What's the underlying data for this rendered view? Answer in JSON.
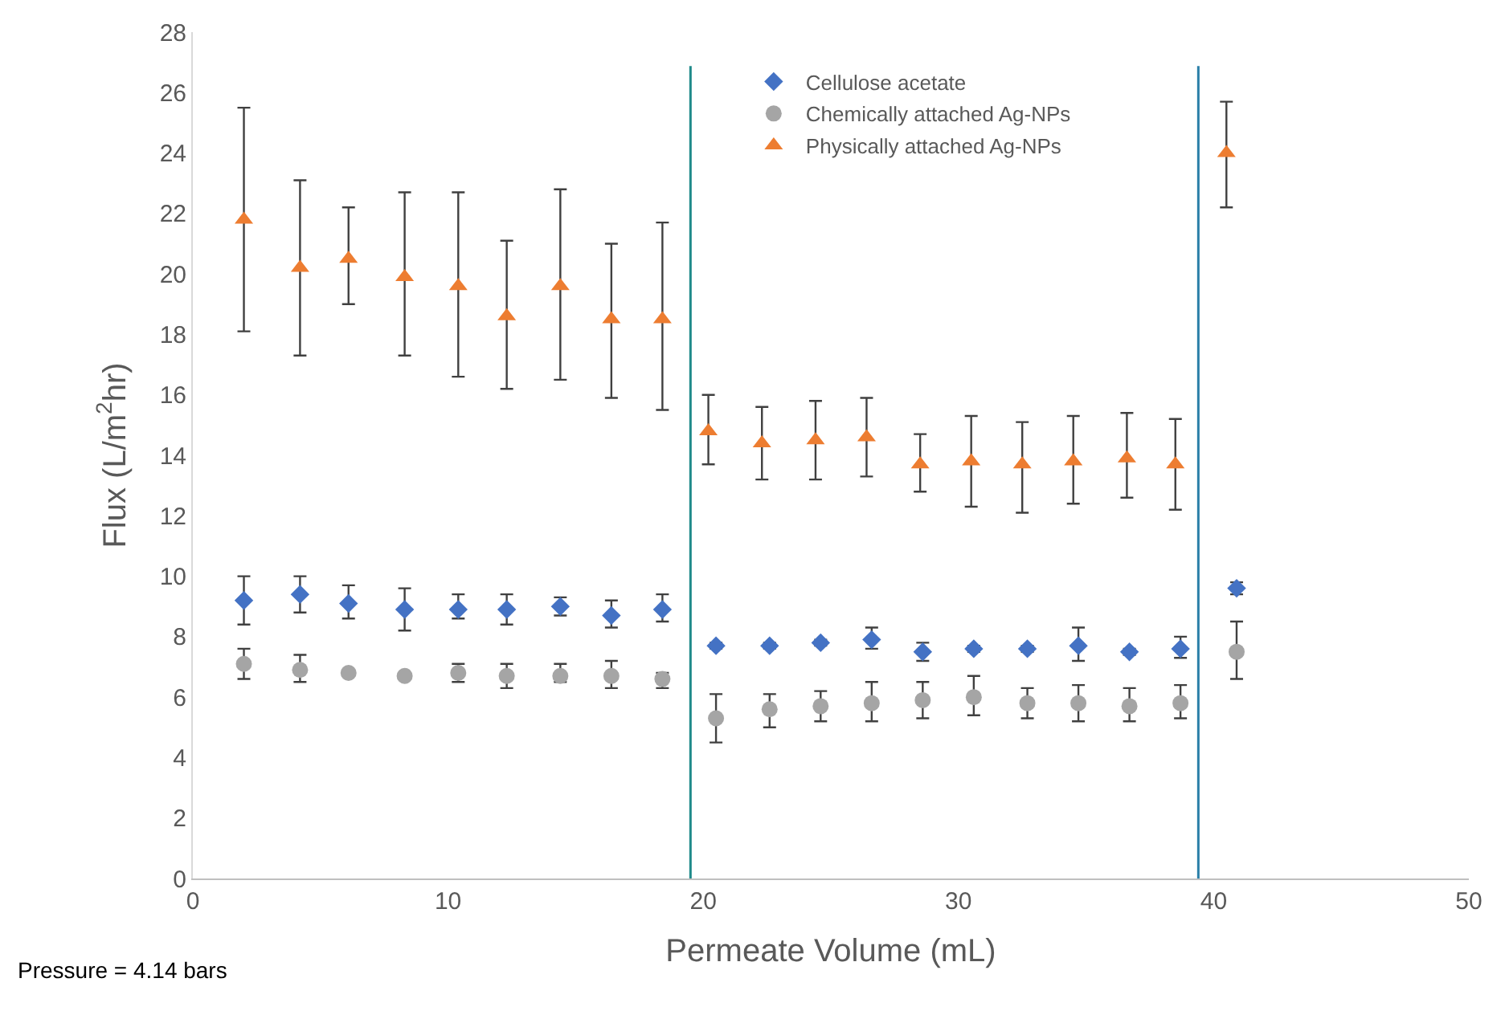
{
  "chart_data": {
    "type": "scatter",
    "xlabel": "Permeate Volume (mL)",
    "ylabel": "Flux (L/m$^{2}$hr)",
    "xlim": [
      0,
      50
    ],
    "xticks": [
      0,
      10,
      20,
      30,
      40,
      50
    ],
    "ylim": [
      0,
      28
    ],
    "yticks": [
      0,
      2,
      4,
      6,
      8,
      10,
      12,
      14,
      16,
      18,
      20,
      22,
      24,
      26,
      28
    ],
    "legend": "top",
    "annotations": [
      "Pressure = 4.14 bars"
    ],
    "ref_lines": [
      {
        "axis": "x",
        "value": 19.5,
        "color": "#1f8a8a"
      },
      {
        "axis": "x",
        "value": 39.4,
        "color": "#2a7fa8"
      }
    ],
    "series": [
      {
        "name": "Cellulose acetate",
        "color": "#4472c4",
        "marker": "diamond",
        "x": [
          2.0,
          4.2,
          6.1,
          8.3,
          10.4,
          12.3,
          14.4,
          16.4,
          18.4,
          20.5,
          22.6,
          24.6,
          26.6,
          28.6,
          30.6,
          32.7,
          34.7,
          36.7,
          38.7,
          40.9
        ],
        "values": [
          9.2,
          9.4,
          9.1,
          8.9,
          8.9,
          8.9,
          9.0,
          8.7,
          8.9,
          7.7,
          7.7,
          7.8,
          7.9,
          7.5,
          7.6,
          7.6,
          7.7,
          7.5,
          7.6,
          9.6
        ],
        "errors": [
          [
            8.4,
            10.0
          ],
          [
            8.8,
            10.0
          ],
          [
            8.6,
            9.7
          ],
          [
            8.2,
            9.6
          ],
          [
            8.6,
            9.4
          ],
          [
            8.4,
            9.4
          ],
          [
            8.7,
            9.3
          ],
          [
            8.3,
            9.2
          ],
          [
            8.5,
            9.4
          ],
          0.1,
          0.1,
          0.1,
          [
            7.6,
            8.3
          ],
          [
            7.2,
            7.8
          ],
          0.1,
          0.1,
          [
            7.2,
            8.3
          ],
          0.1,
          [
            7.3,
            8.0
          ],
          0.2
        ]
      },
      {
        "name": "Chemically attached Ag-NPs",
        "color": "#a5a5a5",
        "marker": "circle",
        "x": [
          2.0,
          4.2,
          6.1,
          8.3,
          10.4,
          12.3,
          14.4,
          16.4,
          18.4,
          20.5,
          22.6,
          24.6,
          26.6,
          28.6,
          30.6,
          32.7,
          34.7,
          36.7,
          38.7,
          40.9
        ],
        "values": [
          7.1,
          6.9,
          6.8,
          6.7,
          6.8,
          6.7,
          6.7,
          6.7,
          6.6,
          5.3,
          5.6,
          5.7,
          5.8,
          5.9,
          6.0,
          5.8,
          5.8,
          5.7,
          5.8,
          7.5
        ],
        "errors": [
          [
            6.6,
            7.6
          ],
          [
            6.5,
            7.4
          ],
          0.1,
          0.1,
          [
            6.5,
            7.1
          ],
          [
            6.3,
            7.1
          ],
          [
            6.5,
            7.1
          ],
          [
            6.3,
            7.2
          ],
          [
            6.3,
            6.8
          ],
          [
            4.5,
            6.1
          ],
          [
            5.0,
            6.1
          ],
          [
            5.2,
            6.2
          ],
          [
            5.2,
            6.5
          ],
          [
            5.3,
            6.5
          ],
          [
            5.4,
            6.7
          ],
          [
            5.3,
            6.3
          ],
          [
            5.2,
            6.4
          ],
          [
            5.2,
            6.3
          ],
          [
            5.3,
            6.4
          ],
          [
            6.6,
            8.5
          ]
        ]
      },
      {
        "name": "Physically attached Ag-NPs",
        "color": "#ed7d31",
        "marker": "triangle",
        "x": [
          2.0,
          4.2,
          6.1,
          8.3,
          10.4,
          12.3,
          14.4,
          16.4,
          18.4,
          20.2,
          22.3,
          24.4,
          26.4,
          28.5,
          30.5,
          32.5,
          34.5,
          36.6,
          38.5,
          40.5
        ],
        "values": [
          21.8,
          20.2,
          20.5,
          19.9,
          19.6,
          18.6,
          19.6,
          18.5,
          18.5,
          14.8,
          14.4,
          14.5,
          14.6,
          13.7,
          13.8,
          13.7,
          13.8,
          13.9,
          13.7,
          24.0
        ],
        "errors": [
          [
            18.1,
            25.5
          ],
          [
            17.3,
            23.1
          ],
          [
            19.0,
            22.2
          ],
          [
            17.3,
            22.7
          ],
          [
            16.6,
            22.7
          ],
          [
            16.2,
            21.1
          ],
          [
            16.5,
            22.8
          ],
          [
            15.9,
            21.0
          ],
          [
            15.5,
            21.7
          ],
          [
            13.7,
            16.0
          ],
          [
            13.2,
            15.6
          ],
          [
            13.2,
            15.8
          ],
          [
            13.3,
            15.9
          ],
          [
            12.8,
            14.7
          ],
          [
            12.3,
            15.3
          ],
          [
            12.1,
            15.1
          ],
          [
            12.4,
            15.3
          ],
          [
            12.6,
            15.4
          ],
          [
            12.2,
            15.2
          ],
          [
            22.2,
            25.7
          ]
        ]
      }
    ]
  }
}
